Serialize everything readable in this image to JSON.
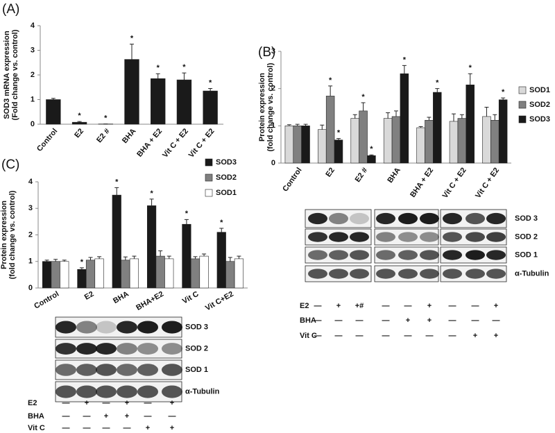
{
  "chart_data": [
    {
      "type": "bar",
      "title": "(A)",
      "ylabel": [
        "SOD3 mRNA expression",
        "(Fold change vs. control)"
      ],
      "categories": [
        "Control",
        "E2",
        "E2 #",
        "BHA",
        "BHA + E2",
        "Vit C + E2",
        "Vit C + E2"
      ],
      "series": [
        {
          "color": "#1a1a1a",
          "values": [
            1.0,
            0.08,
            0.01,
            2.63,
            1.85,
            1.8,
            1.35
          ],
          "errors": [
            0.05,
            0.03,
            0.0,
            0.62,
            0.2,
            0.28,
            0.1
          ],
          "annotations": [
            null,
            "*",
            "*",
            "*",
            "*",
            "*",
            "*"
          ]
        }
      ],
      "ylim": [
        0,
        4
      ],
      "yticks": [
        0,
        1,
        2,
        3,
        4
      ]
    },
    {
      "type": "bar",
      "title": "(B)",
      "ylabel": [
        "Protein expression",
        "(fold change vs. control)"
      ],
      "categories": [
        "Control",
        "E2",
        "E2 #",
        "BHA",
        "BHA + E2",
        "Vit C + E2",
        "Vit C + E2"
      ],
      "series": [
        {
          "name": "SOD1",
          "color": "#d9d9d9",
          "values": [
            1.0,
            0.9,
            1.2,
            1.2,
            0.95,
            1.12,
            1.25
          ],
          "errors": [
            0.03,
            0.12,
            0.1,
            0.15,
            0.03,
            0.2,
            0.25
          ],
          "annotations": [
            null,
            null,
            null,
            null,
            null,
            null,
            null
          ]
        },
        {
          "name": "SOD2",
          "color": "#808080",
          "values": [
            1.0,
            1.8,
            1.4,
            1.25,
            1.15,
            1.2,
            1.15
          ],
          "errors": [
            0.04,
            0.27,
            0.22,
            0.15,
            0.08,
            0.1,
            0.15
          ],
          "annotations": [
            null,
            "*",
            "*",
            null,
            null,
            null,
            null
          ]
        },
        {
          "name": "SOD3",
          "color": "#1a1a1a",
          "values": [
            1.0,
            0.62,
            0.2,
            2.4,
            1.9,
            2.1,
            1.7
          ],
          "errors": [
            0.04,
            0.04,
            0.02,
            0.22,
            0.1,
            0.3,
            0.05
          ],
          "annotations": [
            null,
            "*",
            "*",
            "*",
            "*",
            "*",
            "*"
          ]
        }
      ],
      "ylim": [
        0,
        3
      ],
      "yticks": [
        0,
        1,
        2,
        3
      ],
      "legend": "right"
    },
    {
      "type": "bar",
      "title": "(C)",
      "ylabel": [
        "Protein expression",
        "(fold change vs. control)"
      ],
      "categories": [
        "Control",
        "E2",
        "BHA",
        "BHA+E2",
        "Vit C",
        "Vit C+E2"
      ],
      "series": [
        {
          "name": "SOD3",
          "color": "#1a1a1a",
          "values": [
            1.0,
            0.7,
            3.5,
            3.1,
            2.4,
            2.1
          ],
          "errors": [
            0.05,
            0.06,
            0.28,
            0.25,
            0.18,
            0.15
          ],
          "annotations": [
            null,
            "*",
            "*",
            "*",
            "*",
            "*"
          ]
        },
        {
          "name": "SOD2",
          "color": "#808080",
          "values": [
            1.0,
            1.05,
            1.05,
            1.2,
            1.1,
            1.0
          ],
          "errors": [
            0.08,
            0.1,
            0.12,
            0.2,
            0.08,
            0.15
          ]
        },
        {
          "name": "SOD1",
          "color": "#ffffff",
          "values": [
            1.0,
            1.1,
            1.1,
            1.1,
            1.2,
            1.1
          ],
          "errors": [
            0.05,
            0.08,
            0.1,
            0.1,
            0.08,
            0.1
          ]
        }
      ],
      "ylim": [
        0,
        4
      ],
      "yticks": [
        0,
        1,
        2,
        3,
        4
      ],
      "legend": "top-right"
    }
  ],
  "blots": [
    {
      "bands": [
        "SOD 3",
        "SOD 2",
        "SOD 1",
        "α-Tubulin"
      ],
      "treatments": [
        {
          "name": "E2",
          "marks": [
            "—",
            "+",
            "+#",
            "—",
            "—",
            "+",
            "—",
            "—",
            "+"
          ]
        },
        {
          "name": "BHA",
          "marks": [
            "—",
            "—",
            "—",
            "—",
            "+",
            "+",
            "—",
            "—",
            "—"
          ]
        },
        {
          "name": "Vit C",
          "marks": [
            "—",
            "—",
            "—",
            "—",
            "—",
            "—",
            "—",
            "+",
            "+"
          ]
        }
      ]
    },
    {
      "bands": [
        "SOD 3",
        "SOD 2",
        "SOD 1",
        "α-Tubulin"
      ],
      "treatments": [
        {
          "name": "E2",
          "marks": [
            "—",
            "+",
            "—",
            "+",
            "—",
            "+"
          ]
        },
        {
          "name": "BHA",
          "marks": [
            "—",
            "—",
            "+",
            "+",
            "—",
            "—"
          ]
        },
        {
          "name": "Vit C",
          "marks": [
            "—",
            "—",
            "—",
            "—",
            "+",
            "+"
          ]
        }
      ]
    }
  ]
}
